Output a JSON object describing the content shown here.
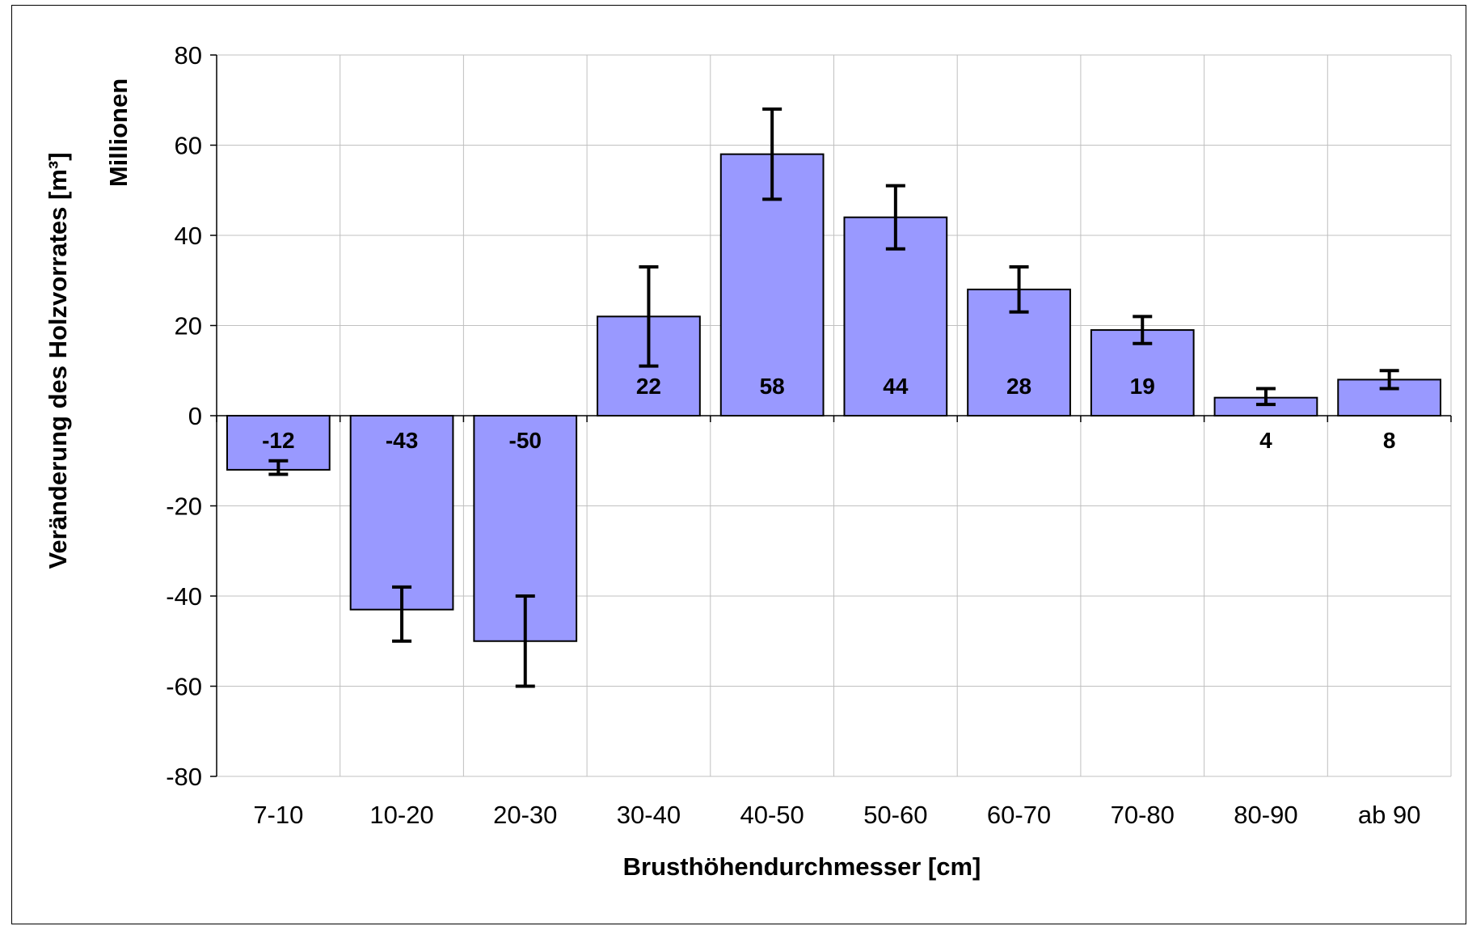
{
  "chart_data": {
    "type": "bar",
    "categories": [
      "7-10",
      "10-20",
      "20-30",
      "30-40",
      "40-50",
      "50-60",
      "60-70",
      "70-80",
      "80-90",
      "ab 90"
    ],
    "series": [
      {
        "values": [
          -12,
          -43,
          -50,
          22,
          58,
          44,
          28,
          19,
          4,
          8
        ],
        "error_low": [
          -13,
          -50,
          -60,
          11,
          48,
          37,
          23,
          16,
          2.5,
          6
        ],
        "error_high": [
          -10,
          -38,
          -40,
          33,
          68,
          51,
          33,
          22,
          6,
          10
        ],
        "data_labels": [
          "-12",
          "-43",
          "-50",
          "22",
          "58",
          "44",
          "28",
          "19",
          "4",
          "8"
        ],
        "color": "#9999ff"
      }
    ],
    "title": "",
    "xlabel": "Brusthöhendurchmesser [cm]",
    "ylabel": "Veränderung des Holzvorrates [m³]",
    "y_display_unit": "Millionen",
    "ylim": [
      -80,
      80
    ],
    "yticks": [
      80,
      60,
      40,
      20,
      0,
      -20,
      -40,
      -60,
      -80
    ],
    "ytick_labels": [
      "80",
      "60",
      "40",
      "20",
      "0",
      "-20",
      "-40",
      "-60",
      "-80"
    ],
    "grid": true,
    "legend": "none",
    "colors": {
      "bar_fill": "#9999ff",
      "bar_stroke": "#000000",
      "grid": "#c0c0c0",
      "axis": "#000000"
    }
  }
}
